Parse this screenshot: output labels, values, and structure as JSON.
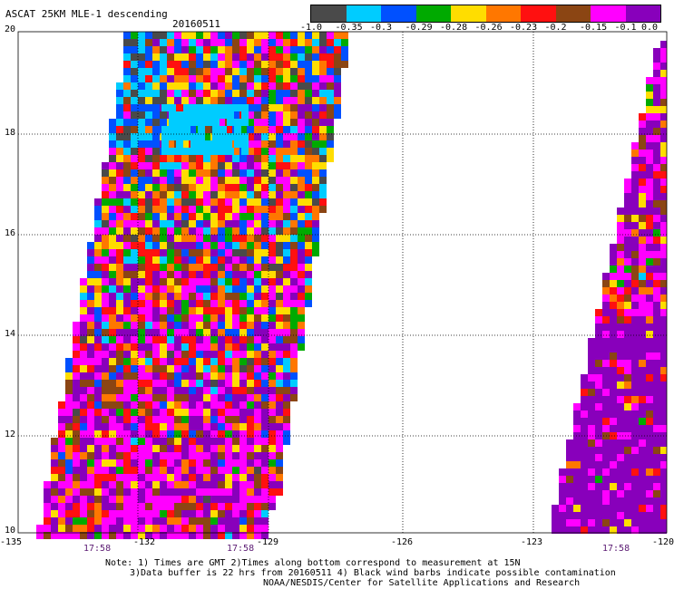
{
  "title": "ASCAT 25KM MLE-1 descending",
  "date": "20160511",
  "legend": {
    "colors": [
      "#4a4a4a",
      "#00ccff",
      "#0050ff",
      "#00aa00",
      "#ffdd00",
      "#ff7700",
      "#ff1010",
      "#8b4513",
      "#ff00ff",
      "#8800bb"
    ],
    "labels": [
      "-1.0",
      "-0.35",
      "-0.3",
      "-0.29",
      "-0.28",
      "-0.26",
      "-0.23",
      "-0.2",
      "-0.15",
      "-0.1",
      "0.0"
    ]
  },
  "axes": {
    "lat_labels": [
      "20",
      "18",
      "16",
      "14",
      "12",
      "10"
    ],
    "lon_labels": [
      "-135",
      "-132",
      "-129",
      "-126",
      "-123",
      "-120"
    ]
  },
  "times": [
    "17:58",
    "17:58",
    "17:58"
  ],
  "notes": [
    "Note: 1) Times are GMT 2)Times along bottom correspond to measurement at 15N",
    "3)Data buffer is 22 hrs from 20160511 4) Black wind barbs indicate possible contamination",
    "NOAA/NESDIS/Center for Satellite Applications and Research"
  ]
}
